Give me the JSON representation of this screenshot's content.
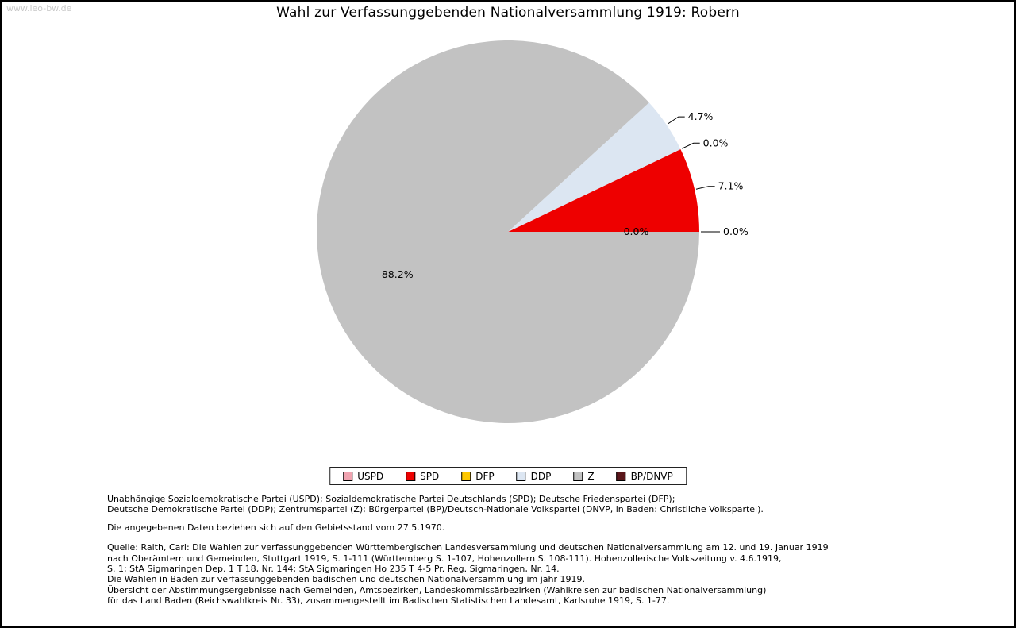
{
  "watermark": "www.leo-bw.de",
  "chart_data": {
    "type": "pie",
    "title": "Wahl zur Verfassunggebenden Nationalversammlung 1919: Robern",
    "unit": "%",
    "start_angle_deg": 0,
    "direction": "ccw",
    "legend_position": "bottom",
    "slices": [
      {
        "name": "USPD",
        "value": 0.0,
        "label": "0.0%",
        "color": "#f0a3b0",
        "placement": "outside"
      },
      {
        "name": "SPD",
        "value": 7.1,
        "label": "7.1%",
        "color": "#ee0000",
        "placement": "outside"
      },
      {
        "name": "DFP",
        "value": 0.0,
        "label": "0.0%",
        "color": "#ffc800",
        "placement": "outside"
      },
      {
        "name": "DDP",
        "value": 4.7,
        "label": "4.7%",
        "color": "#dce6f2",
        "placement": "outside"
      },
      {
        "name": "Z",
        "value": 88.2,
        "label": "88.2%",
        "color": "#c2c2c2",
        "placement": "inside",
        "inside_r": 0.62
      },
      {
        "name": "BP/DNVP",
        "value": 0.0,
        "label": "0.0%",
        "color": "#5a161a",
        "placement": "inside",
        "inside_r": 0.67
      }
    ]
  },
  "footer": {
    "party_lines": [
      "Unabhängige Sozialdemokratische Partei (USPD); Sozialdemokratische Partei Deutschlands (SPD); Deutsche Friedenspartei (DFP);",
      "Deutsche Demokratische Partei (DDP); Zentrumspartei (Z); Bürgerpartei (BP)/Deutsch-Nationale Volkspartei (DNVP, in Baden: Christliche Volkspartei)."
    ],
    "data_note": "Die angegebenen Daten beziehen sich auf den Gebietsstand vom 27.5.1970.",
    "source_lines": [
      "Quelle: Raith, Carl: Die Wahlen zur verfassunggebenden Württembergischen Landesversammlung und deutschen Nationalversammlung am 12. und 19. Januar 1919",
      "nach Oberämtern und Gemeinden, Stuttgart 1919, S. 1-111 (Württemberg S. 1-107, Hohenzollern S. 108-111). Hohenzollerische Volkszeitung v. 4.6.1919,",
      "S. 1; StA Sigmaringen Dep. 1 T 18, Nr. 144; StA Sigmaringen Ho 235 T 4-5 Pr. Reg. Sigmaringen, Nr. 14.",
      "Die Wahlen in Baden zur verfassunggebenden badischen und deutschen Nationalversammlung im jahr 1919.",
      "Übersicht der Abstimmungsergebnisse nach Gemeinden, Amtsbezirken, Landeskommissärbezirken (Wahlkreisen zur badischen Nationalversammlung)",
      "für das Land Baden (Reichswahlkreis Nr. 33), zusammengestellt im Badischen Statistischen Landesamt, Karlsruhe 1919, S. 1-77."
    ]
  }
}
